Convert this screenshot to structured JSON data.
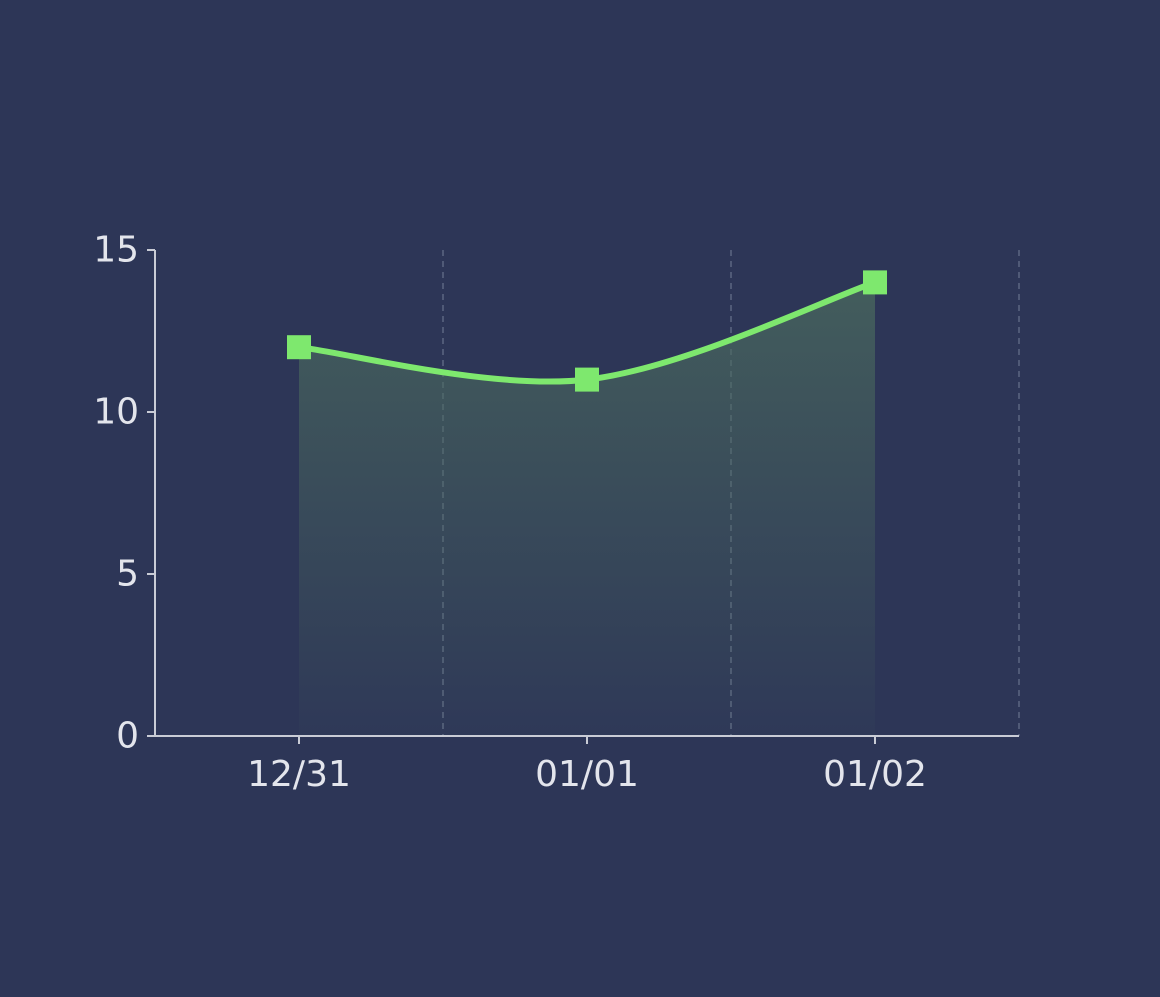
{
  "colors": {
    "background": "#2d3657",
    "line": "#7ee86e",
    "axis": "#c9ccd6",
    "text": "#e3e5ec",
    "grid": "#5c6782",
    "area_top": "#4a6a5e"
  },
  "chart_data": {
    "type": "area",
    "categories": [
      "12/31",
      "01/01",
      "01/02"
    ],
    "series": [
      {
        "values": [
          12,
          11,
          14
        ]
      }
    ],
    "y_ticks": [
      "0",
      "5",
      "10",
      "15"
    ],
    "ylim": [
      0,
      15
    ],
    "grid": "vertical dashed",
    "marker": "square",
    "curve": "smooth"
  }
}
